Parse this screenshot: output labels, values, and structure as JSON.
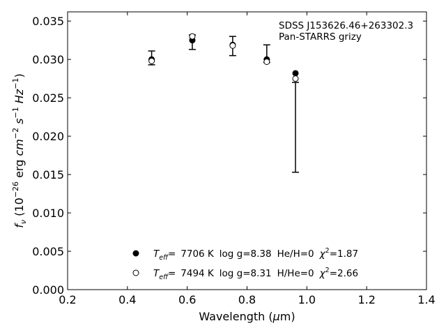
{
  "chart_data": {
    "type": "scatter",
    "xlabel_parts": [
      "Wavelength (",
      "μ",
      "m)"
    ],
    "ylabel_parts": {
      "f": "f",
      "nu": "ν",
      "a": " (10",
      "exp1": "−26",
      "b": " erg ",
      "cm": "cm",
      "exp2": "−2",
      "s": " s",
      "exp3": "−1",
      "hz": " Hz",
      "exp4": "−1",
      "c": ")"
    },
    "xlim": [
      0.2,
      1.4
    ],
    "ylim": [
      0.0,
      0.0362
    ],
    "xticks": [
      0.2,
      0.4,
      0.6,
      0.8,
      1.0,
      1.2,
      1.4
    ],
    "xtick_labels": [
      "0.2",
      "0.4",
      "0.6",
      "0.8",
      "1.0",
      "1.2",
      "1.4"
    ],
    "yticks": [
      0.0,
      0.005,
      0.01,
      0.015,
      0.02,
      0.025,
      0.03,
      0.035
    ],
    "ytick_labels": [
      "0.000",
      "0.005",
      "0.010",
      "0.015",
      "0.020",
      "0.025",
      "0.030",
      "0.035"
    ],
    "annotation": {
      "line1": "SDSS J153626.46+263302.3",
      "line2": "Pan-STARRS grizy"
    },
    "observed": {
      "x": [
        0.481,
        0.617,
        0.752,
        0.866,
        0.962
      ],
      "y": [
        0.0301,
        0.0325,
        0.0317,
        0.0302,
        null
      ],
      "err_low": [
        0.0293,
        0.0313,
        0.0305,
        0.0296,
        0.0153
      ],
      "err_high": [
        0.0311,
        0.0332,
        0.033,
        0.0319,
        0.027
      ]
    },
    "series": [
      {
        "marker": "filled-circle",
        "x": [
          0.481,
          0.617,
          0.752,
          0.866,
          0.962
        ],
        "y": [
          0.03,
          0.0325,
          0.0319,
          0.03,
          0.0282
        ],
        "legend": {
          "teff_sym": "T",
          "teff_sub": "eff",
          "eq": "=",
          "teff": "7706 K",
          "logg": "log g=8.38",
          "comp": "He/H=0",
          "chi": "χ",
          "chi_exp": "2",
          "chi_val": "=1.87"
        }
      },
      {
        "marker": "open-circle",
        "x": [
          0.481,
          0.617,
          0.752,
          0.866,
          0.962
        ],
        "y": [
          0.0298,
          0.033,
          0.0318,
          0.0297,
          0.0275
        ],
        "legend": {
          "teff_sym": "T",
          "teff_sub": "eff",
          "eq": "=",
          "teff": "7494 K",
          "logg": "log g=8.31",
          "comp": "H/He=0",
          "chi": "χ",
          "chi_exp": "2",
          "chi_val": "=2.66"
        }
      }
    ],
    "legend_location": "lower-center"
  }
}
